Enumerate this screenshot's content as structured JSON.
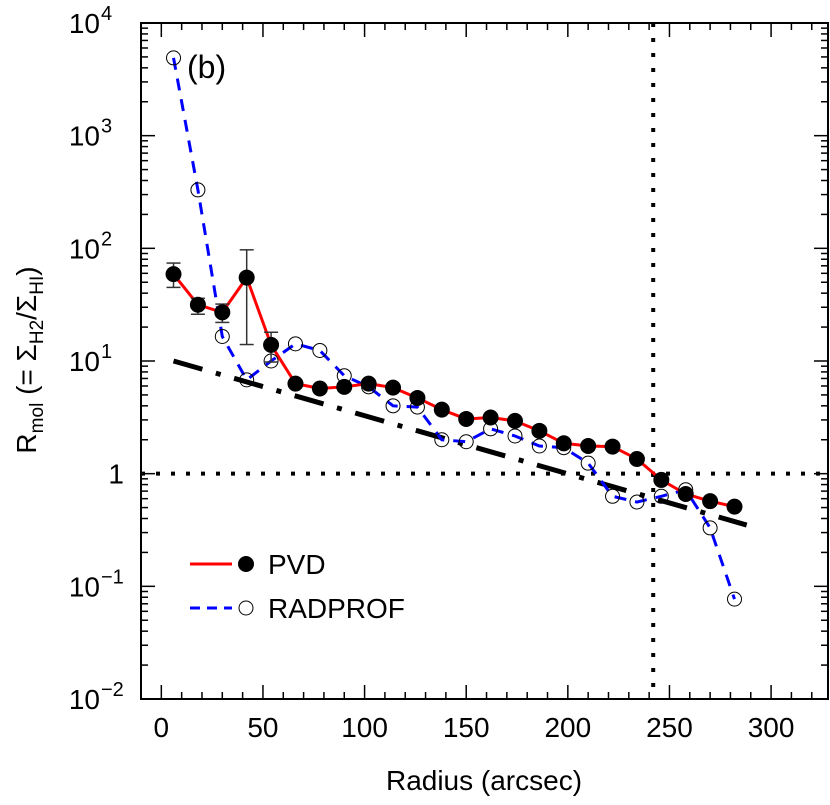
{
  "chart_data": {
    "type": "line",
    "panel_label": "(b)",
    "xlabel": "Radius (arcsec)",
    "ylabel_parts": [
      {
        "text": "R",
        "sub": false
      },
      {
        "text": "mol",
        "sub": true
      },
      {
        "text": " (= Σ",
        "sub": false
      },
      {
        "text": "H2",
        "sub": true
      },
      {
        "text": "/Σ",
        "sub": false
      },
      {
        "text": "HI",
        "sub": true
      },
      {
        "text": ")",
        "sub": false
      }
    ],
    "xlim": [
      -10,
      328
    ],
    "ylim": [
      0.01,
      10000
    ],
    "yscale": "log",
    "xticks": [
      0,
      50,
      100,
      150,
      200,
      250,
      300
    ],
    "xtick_labels": [
      "0",
      "50",
      "100",
      "150",
      "200",
      "250",
      "300"
    ],
    "yticks": [
      {
        "value": 0.01,
        "base": "10",
        "exp": "−2"
      },
      {
        "value": 0.1,
        "base": "10",
        "exp": "−1"
      },
      {
        "value": 1,
        "base": "1",
        "exp": ""
      },
      {
        "value": 10,
        "base": "10",
        "exp": "1"
      },
      {
        "value": 100,
        "base": "10",
        "exp": "2"
      },
      {
        "value": 1000,
        "base": "10",
        "exp": "3"
      },
      {
        "value": 10000,
        "base": "10",
        "exp": "4"
      }
    ],
    "grid": false,
    "legend_placement": "bottom-left",
    "x": [
      6,
      18,
      30,
      42,
      54,
      66,
      78,
      90,
      102,
      114,
      126,
      138,
      150,
      162,
      174,
      186,
      198,
      210,
      222,
      234,
      246,
      258,
      270,
      282
    ],
    "series": [
      {
        "name": "PVD",
        "color": "#ff0000",
        "line_style": "solid",
        "marker": "filled-circle",
        "values": [
          59,
          31.6,
          27,
          55,
          13.9,
          6.3,
          5.7,
          5.9,
          6.3,
          5.8,
          4.7,
          3.7,
          3.06,
          3.15,
          2.94,
          2.4,
          1.86,
          1.76,
          1.74,
          1.35,
          0.88,
          0.66,
          0.57,
          0.51
        ],
        "error_low": [
          45,
          26,
          22,
          14,
          9.8,
          null,
          null,
          null,
          null,
          null,
          null,
          null,
          null,
          null,
          null,
          null,
          null,
          null,
          null,
          null,
          null,
          null,
          null,
          null
        ],
        "error_high": [
          74,
          36,
          32,
          97,
          18,
          null,
          null,
          null,
          null,
          null,
          null,
          null,
          null,
          null,
          null,
          null,
          null,
          null,
          null,
          null,
          null,
          null,
          null,
          null
        ]
      },
      {
        "name": "RADPROF",
        "color": "#0000ff",
        "line_style": "dashed",
        "marker": "open-circle",
        "values": [
          4900,
          330,
          16.5,
          6.8,
          10,
          14.2,
          12.4,
          7.4,
          5.9,
          4.0,
          3.9,
          2.0,
          1.92,
          2.5,
          2.16,
          1.76,
          1.7,
          1.24,
          0.63,
          0.56,
          0.63,
          0.72,
          0.33,
          0.077
        ]
      }
    ],
    "fit_line": {
      "style": "dash-dot",
      "color": "#000000",
      "x": [
        6,
        288
      ],
      "y": [
        10,
        0.35
      ]
    },
    "reference_lines": [
      {
        "orientation": "horizontal",
        "value": 1,
        "style": "dotted"
      },
      {
        "orientation": "vertical",
        "value": 242,
        "style": "dotted"
      }
    ]
  }
}
